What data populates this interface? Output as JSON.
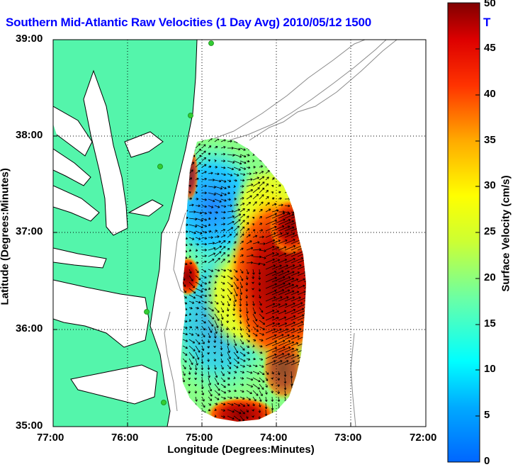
{
  "title": "Southern Mid-Atlantic Raw Velocities (1 Day Avg) 2010/05/12 1500",
  "title_tail": "T",
  "map": {
    "x_label": "Longitude (Degrees:Minutes)",
    "y_label": "Latitude (Degrees:Minutes)",
    "x_ticks": [
      "77:00",
      "76:00",
      "75:00",
      "74:00",
      "73:00",
      "72:00"
    ],
    "y_ticks": [
      "39:00",
      "38:00",
      "37:00",
      "36:00",
      "35:00"
    ],
    "lon_range": [
      -77,
      -72
    ],
    "lat_range": [
      35,
      39
    ],
    "grid": "dotted",
    "land_color": "#54f5ab",
    "station_color": "#33cc33"
  },
  "colorbar": {
    "label": "Surface Velocity (cm/s)",
    "ticks": [
      "0",
      "5",
      "10",
      "15",
      "20",
      "25",
      "30",
      "35",
      "40",
      "45",
      "50"
    ],
    "range": [
      0,
      50
    ],
    "colormap": "jet"
  }
}
